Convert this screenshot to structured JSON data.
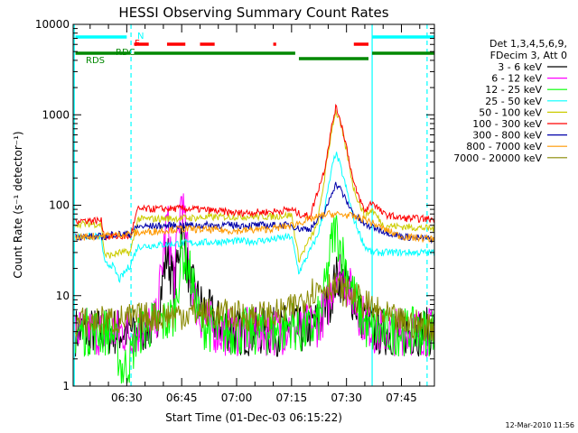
{
  "chart_data": {
    "type": "line",
    "title": "HESSI Observing Summary Count Rates",
    "xlabel": "Start Time (01-Dec-03 06:15:22)",
    "ylabel": "Count Rate (s⁻¹ detector⁻¹)",
    "yscale": "log",
    "ylim": [
      1,
      10000
    ],
    "xlim": [
      "06:15:22",
      "07:54:00"
    ],
    "x_ticks": [
      "06:30",
      "06:45",
      "07:00",
      "07:15",
      "07:30",
      "07:45"
    ],
    "y_ticks": [
      "1",
      "10",
      "100",
      "1000",
      "10000"
    ],
    "legend_header": [
      "Det 1,3,4,5,6,9,",
      "FDecim 3, Att 0"
    ],
    "series": [
      {
        "name": "3 - 6 keV",
        "color": "#000000",
        "x": [
          "06:16",
          "06:25",
          "06:26",
          "06:28",
          "06:31",
          "06:33",
          "06:38",
          "06:41",
          "06:43",
          "06:45",
          "06:47",
          "06:50",
          "06:55",
          "07:00",
          "07:10",
          "07:12",
          "07:15",
          "07:17",
          "07:22",
          "07:25",
          "07:27",
          "07:28",
          "07:30",
          "07:32",
          "07:34",
          "07:36",
          "07:38",
          "07:45",
          "07:54"
        ],
        "y": [
          4,
          4,
          4,
          4,
          4,
          4,
          5,
          30,
          12,
          60,
          15,
          8,
          5,
          4,
          4,
          4,
          5,
          4,
          5,
          8,
          15,
          16,
          13,
          9,
          6,
          5,
          4,
          4,
          4
        ]
      },
      {
        "name": "6 - 12 keV",
        "color": "#ff00ff",
        "x": [
          "06:16",
          "06:25",
          "06:26",
          "06:28",
          "06:31",
          "06:33",
          "06:38",
          "06:41",
          "06:43",
          "06:45",
          "06:46",
          "06:47",
          "06:49",
          "06:50",
          "06:55",
          "07:00",
          "07:10",
          "07:12",
          "07:15",
          "07:17",
          "07:22",
          "07:25",
          "07:27",
          "07:28",
          "07:30",
          "07:32",
          "07:34",
          "07:36",
          "07:38",
          "07:45",
          "07:54"
        ],
        "y": [
          4,
          4,
          4,
          4,
          4,
          4,
          5,
          70,
          15,
          140,
          50,
          20,
          8,
          6,
          4,
          4,
          4,
          4,
          5,
          4,
          5,
          8,
          18,
          20,
          14,
          9,
          6,
          5,
          4,
          4,
          4
        ]
      },
      {
        "name": "12 - 25 keV",
        "color": "#00ff00",
        "x": [
          "06:16",
          "06:25",
          "06:26",
          "06:27",
          "06:28",
          "06:29",
          "06:31",
          "06:33",
          "06:38",
          "06:40",
          "06:43",
          "06:45",
          "06:47",
          "06:49",
          "06:50",
          "06:55",
          "07:00",
          "07:10",
          "07:12",
          "07:15",
          "07:17",
          "07:20",
          "07:23",
          "07:25",
          "07:26",
          "07:27",
          "07:28",
          "07:30",
          "07:32",
          "07:34",
          "07:36",
          "07:38",
          "07:45",
          "07:54"
        ],
        "y": [
          4,
          4,
          4,
          3,
          2,
          1.5,
          2,
          4,
          5,
          5,
          6,
          30,
          20,
          8,
          5,
          4,
          4,
          4,
          4,
          5,
          4,
          4,
          6,
          20,
          40,
          55,
          40,
          20,
          10,
          6,
          4,
          4,
          4,
          4
        ]
      },
      {
        "name": "25 - 50 keV",
        "color": "#00ffff",
        "x": [
          "06:16",
          "06:23",
          "06:24",
          "06:26",
          "06:28",
          "06:31",
          "06:33",
          "06:45",
          "07:00",
          "07:05",
          "07:10",
          "07:15",
          "07:17",
          "07:22",
          "07:24",
          "07:26",
          "07:27",
          "07:28",
          "07:30",
          "07:32",
          "07:35",
          "07:37",
          "07:40",
          "07:45",
          "07:54"
        ],
        "y": [
          45,
          45,
          22,
          22,
          15,
          22,
          35,
          38,
          40,
          40,
          42,
          45,
          18,
          45,
          90,
          250,
          380,
          300,
          150,
          70,
          35,
          30,
          30,
          30,
          30
        ]
      },
      {
        "name": "50 - 100 keV",
        "color": "#cccc00",
        "x": [
          "06:16",
          "06:23",
          "06:24",
          "06:26",
          "06:28",
          "06:31",
          "06:33",
          "06:45",
          "07:00",
          "07:10",
          "07:15",
          "07:17",
          "07:22",
          "07:24",
          "07:26",
          "07:27",
          "07:28",
          "07:30",
          "07:32",
          "07:35",
          "07:37",
          "07:40",
          "07:45",
          "07:54"
        ],
        "y": [
          62,
          62,
          28,
          28,
          30,
          30,
          70,
          72,
          75,
          75,
          78,
          25,
          60,
          200,
          700,
          1100,
          900,
          400,
          150,
          75,
          90,
          60,
          58,
          55
        ]
      },
      {
        "name": "100 - 300 keV",
        "color": "#ff0000",
        "x": [
          "06:16",
          "06:23",
          "06:24",
          "06:26",
          "06:28",
          "06:31",
          "06:33",
          "06:45",
          "06:50",
          "07:00",
          "07:10",
          "07:15",
          "07:17",
          "07:20",
          "07:24",
          "07:26",
          "07:27",
          "07:28",
          "07:30",
          "07:32",
          "07:35",
          "07:37",
          "07:40",
          "07:45",
          "07:54"
        ],
        "y": [
          68,
          68,
          45,
          45,
          45,
          45,
          90,
          92,
          90,
          82,
          85,
          90,
          80,
          75,
          250,
          750,
          1200,
          1000,
          450,
          170,
          85,
          110,
          80,
          72,
          70
        ]
      },
      {
        "name": "300 - 800 keV",
        "color": "#0000aa",
        "x": [
          "06:16",
          "06:23",
          "06:24",
          "06:26",
          "06:28",
          "06:31",
          "06:33",
          "06:45",
          "07:00",
          "07:10",
          "07:15",
          "07:17",
          "07:20",
          "07:24",
          "07:26",
          "07:27",
          "07:28",
          "07:30",
          "07:32",
          "07:35",
          "07:37",
          "07:40",
          "07:45",
          "07:54"
        ],
        "y": [
          45,
          45,
          45,
          48,
          48,
          48,
          58,
          60,
          60,
          60,
          60,
          55,
          55,
          80,
          140,
          170,
          160,
          110,
          80,
          60,
          58,
          52,
          45,
          42
        ]
      },
      {
        "name": "800 - 7000 keV",
        "color": "#ff9900",
        "x": [
          "06:16",
          "06:30",
          "06:45",
          "07:00",
          "07:10",
          "07:15",
          "07:20",
          "07:25",
          "07:30",
          "07:35",
          "07:40",
          "07:45",
          "07:54"
        ],
        "y": [
          44,
          48,
          55,
          52,
          55,
          60,
          70,
          80,
          78,
          70,
          55,
          45,
          42
        ]
      },
      {
        "name": "7000 - 20000 keV",
        "color": "#888800",
        "x": [
          "06:16",
          "06:30",
          "06:40",
          "06:50",
          "07:00",
          "07:10",
          "07:15",
          "07:20",
          "07:25",
          "07:30",
          "07:35",
          "07:40",
          "07:45",
          "07:54"
        ],
        "y": [
          5,
          5.5,
          6,
          6.5,
          6,
          6,
          7,
          11,
          13,
          11,
          8,
          6,
          5,
          4.5
        ]
      }
    ],
    "flag_bars": {
      "N": {
        "label": "N",
        "color": "#00ffff",
        "segments": [
          [
            "06:16",
            "06:30"
          ],
          [
            "07:37",
            "07:54"
          ]
        ]
      },
      "F": {
        "label": "F",
        "color": "#ff0000",
        "segments": [
          [
            "06:32",
            "06:36"
          ],
          [
            "06:41",
            "06:46"
          ],
          [
            "06:50",
            "06:54"
          ],
          [
            "07:10",
            "07:10.8"
          ],
          [
            "07:32",
            "07:36"
          ]
        ]
      },
      "RDC": {
        "label": "RDC",
        "color": "#008800",
        "segments": [
          [
            "06:32",
            "07:16"
          ],
          [
            "07:37",
            "07:54"
          ]
        ]
      },
      "RDS": {
        "label": "RDS",
        "color": "#008800",
        "segments": [
          [
            "06:16",
            "06:31"
          ]
        ]
      },
      "SAA": {
        "color": "#008800",
        "segments": [
          [
            "07:17",
            "07:36"
          ]
        ]
      }
    },
    "vertical_markers": [
      {
        "time": "06:15:40",
        "color": "#00ffff",
        "style": "solid"
      },
      {
        "time": "06:31:10",
        "color": "#00ffff",
        "style": "dashed"
      },
      {
        "time": "07:37:00",
        "color": "#00ffff",
        "style": "solid"
      },
      {
        "time": "07:52:00",
        "color": "#00ffff",
        "style": "dashed"
      }
    ]
  },
  "footer": {
    "timestamp": "12-Mar-2010 11:56"
  }
}
